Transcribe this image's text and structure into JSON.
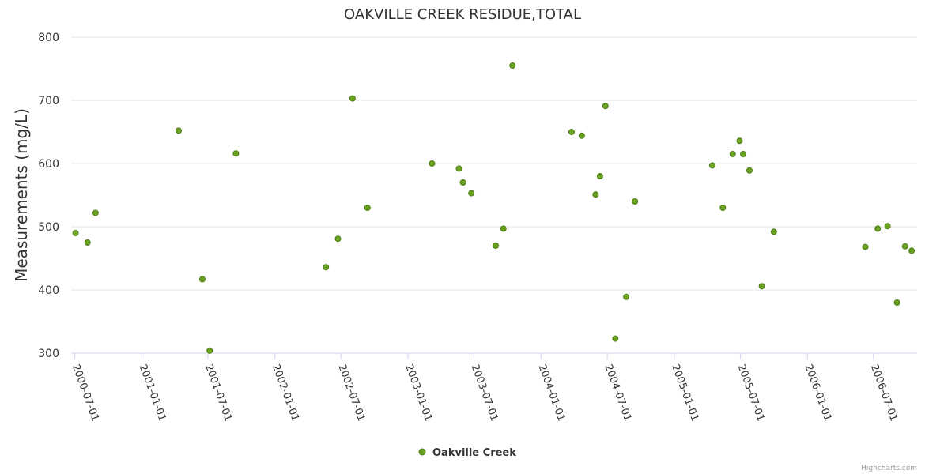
{
  "chart_data": {
    "type": "scatter",
    "title": "OAKVILLE CREEK RESIDUE,TOTAL",
    "xlabel": "",
    "ylabel": "Measurements (mg/L)",
    "ylim": [
      300,
      800
    ],
    "yticks": [
      300,
      400,
      500,
      600,
      700,
      800
    ],
    "xlim": [
      "2000-06-21",
      "2006-10-29"
    ],
    "xticks": [
      "2000-07-01",
      "2001-01-01",
      "2001-07-01",
      "2002-01-01",
      "2002-07-01",
      "2003-01-01",
      "2003-07-01",
      "2004-01-01",
      "2004-07-01",
      "2005-01-01",
      "2005-07-01",
      "2006-01-01",
      "2006-07-01"
    ],
    "grid": "horizontal",
    "legend_position": "bottom-center",
    "series": [
      {
        "name": "Oakville Creek",
        "color": "#6aa121",
        "marker": "circle",
        "points": [
          {
            "x": "2000-07-03",
            "y": 490
          },
          {
            "x": "2000-08-05",
            "y": 475
          },
          {
            "x": "2000-08-27",
            "y": 522
          },
          {
            "x": "2001-04-12",
            "y": 652
          },
          {
            "x": "2001-06-16",
            "y": 417
          },
          {
            "x": "2001-07-06",
            "y": 304
          },
          {
            "x": "2001-09-16",
            "y": 616
          },
          {
            "x": "2002-05-21",
            "y": 436
          },
          {
            "x": "2002-06-23",
            "y": 481
          },
          {
            "x": "2002-08-02",
            "y": 703
          },
          {
            "x": "2002-09-12",
            "y": 530
          },
          {
            "x": "2003-03-08",
            "y": 600
          },
          {
            "x": "2003-05-21",
            "y": 592
          },
          {
            "x": "2003-06-01",
            "y": 570
          },
          {
            "x": "2003-06-24",
            "y": 553
          },
          {
            "x": "2003-08-30",
            "y": 470
          },
          {
            "x": "2003-09-20",
            "y": 497
          },
          {
            "x": "2003-10-15",
            "y": 755
          },
          {
            "x": "2004-03-25",
            "y": 650
          },
          {
            "x": "2004-04-22",
            "y": 644
          },
          {
            "x": "2004-05-30",
            "y": 551
          },
          {
            "x": "2004-06-11",
            "y": 580
          },
          {
            "x": "2004-06-26",
            "y": 691
          },
          {
            "x": "2004-07-23",
            "y": 323
          },
          {
            "x": "2004-08-22",
            "y": 389
          },
          {
            "x": "2004-09-15",
            "y": 540
          },
          {
            "x": "2005-04-15",
            "y": 597
          },
          {
            "x": "2005-05-14",
            "y": 530
          },
          {
            "x": "2005-06-10",
            "y": 615
          },
          {
            "x": "2005-06-29",
            "y": 636
          },
          {
            "x": "2005-07-09",
            "y": 615
          },
          {
            "x": "2005-07-26",
            "y": 589
          },
          {
            "x": "2005-08-29",
            "y": 406
          },
          {
            "x": "2005-10-01",
            "y": 492
          },
          {
            "x": "2006-06-09",
            "y": 468
          },
          {
            "x": "2006-07-13",
            "y": 497
          },
          {
            "x": "2006-08-09",
            "y": 501
          },
          {
            "x": "2006-09-04",
            "y": 380
          },
          {
            "x": "2006-09-26",
            "y": 469
          },
          {
            "x": "2006-10-14",
            "y": 462
          }
        ]
      }
    ]
  },
  "legend": {
    "label": "Oakville Creek"
  },
  "credits": "Highcharts.com"
}
